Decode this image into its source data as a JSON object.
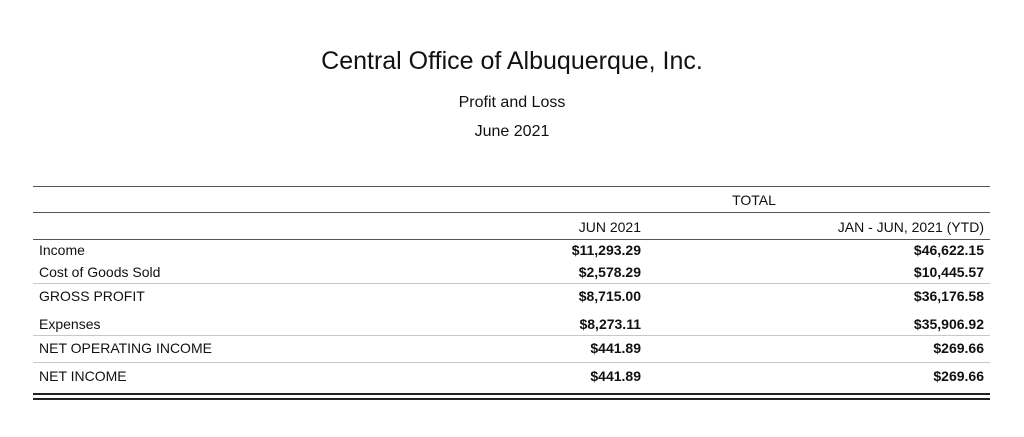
{
  "header": {
    "company": "Central Office of Albuquerque, Inc.",
    "title": "Profit and Loss",
    "period": "June 2021"
  },
  "table": {
    "group_header": "TOTAL",
    "columns": [
      "JUN 2021",
      "JAN - JUN, 2021 (YTD)"
    ],
    "rows": [
      {
        "label": "Income",
        "jun": "$11,293.29",
        "ytd": "$46,622.15"
      },
      {
        "label": "Cost of Goods Sold",
        "jun": "$2,578.29",
        "ytd": "$10,445.57"
      },
      {
        "label": "GROSS PROFIT",
        "jun": "$8,715.00",
        "ytd": "$36,176.58"
      },
      {
        "label": "Expenses",
        "jun": "$8,273.11",
        "ytd": "$35,906.92"
      },
      {
        "label": "NET OPERATING INCOME",
        "jun": "$441.89",
        "ytd": "$269.66"
      },
      {
        "label": "NET INCOME",
        "jun": "$441.89",
        "ytd": "$269.66"
      }
    ]
  }
}
